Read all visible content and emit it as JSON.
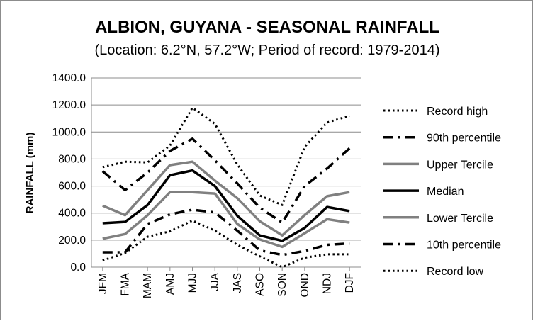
{
  "chart_data": {
    "type": "line",
    "title": "ALBION, GUYANA - SEASONAL RAINFALL",
    "subtitle": "(Location: 6.2°N, 57.2°W; Period of record: 1979-2014)",
    "xlabel": "",
    "ylabel": "RAINFALL (mm)",
    "ylim": [
      0,
      1400
    ],
    "yticks": [
      0,
      200,
      400,
      600,
      800,
      1000,
      1200,
      1400
    ],
    "ytick_labels": [
      "0.0",
      "200.0",
      "400.0",
      "600.0",
      "800.0",
      "1000.0",
      "1200.0",
      "1400.0"
    ],
    "categories": [
      "JFM",
      "FMA",
      "MAM",
      "AMJ",
      "MJJ",
      "JJA",
      "JAS",
      "ASO",
      "SON",
      "OND",
      "NDJ",
      "DJF"
    ],
    "grid": "horizontal",
    "legend_position": "right",
    "series": [
      {
        "name": "Record high",
        "style": "dotted",
        "color": "#000000",
        "width": 3,
        "values": [
          740,
          780,
          775,
          900,
          1180,
          1060,
          760,
          530,
          460,
          890,
          1070,
          1120
        ]
      },
      {
        "name": "90th percentile",
        "style": "dashdot",
        "color": "#000000",
        "width": 3.5,
        "values": [
          710,
          570,
          700,
          860,
          950,
          790,
          620,
          440,
          330,
          600,
          730,
          880
        ]
      },
      {
        "name": "Upper Tercile",
        "style": "solid",
        "color": "#808080",
        "width": 3.5,
        "values": [
          455,
          385,
          570,
          755,
          780,
          640,
          510,
          340,
          235,
          385,
          525,
          555
        ]
      },
      {
        "name": "Median",
        "style": "solid",
        "color": "#000000",
        "width": 3.5,
        "values": [
          325,
          335,
          460,
          680,
          715,
          600,
          380,
          235,
          195,
          290,
          445,
          415
        ]
      },
      {
        "name": "Lower Tercile",
        "style": "solid",
        "color": "#808080",
        "width": 3.5,
        "values": [
          210,
          245,
          385,
          555,
          555,
          545,
          320,
          205,
          150,
          250,
          355,
          330
        ]
      },
      {
        "name": "10th percentile",
        "style": "dashdot",
        "color": "#000000",
        "width": 3.5,
        "values": [
          110,
          110,
          320,
          390,
          425,
          405,
          270,
          125,
          90,
          120,
          165,
          175
        ]
      },
      {
        "name": "Record low",
        "style": "dotted",
        "color": "#000000",
        "width": 3,
        "values": [
          50,
          105,
          225,
          265,
          345,
          270,
          165,
          80,
          0,
          70,
          95,
          95
        ]
      }
    ]
  }
}
